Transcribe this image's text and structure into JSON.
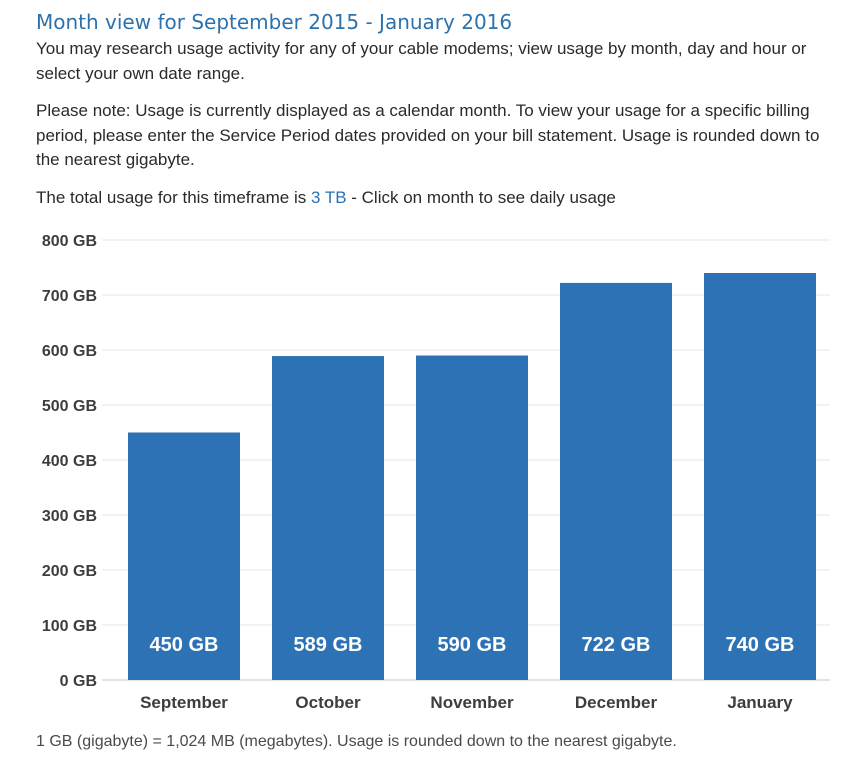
{
  "header": {
    "title": "Month view for September 2015 - January 2016"
  },
  "intro": {
    "text": "You may research usage activity for any of your cable modems; view usage by month, day and hour or select your own date range."
  },
  "note": {
    "text": "Please note: Usage is currently displayed as a calendar month. To view your usage for a specific billing period, please enter the Service Period dates provided on your bill statement. Usage is rounded down to the nearest gigabyte."
  },
  "total": {
    "prefix": "The total usage for this timeframe is ",
    "value": "3 TB",
    "suffix": " - Click on month to see daily usage"
  },
  "colors": {
    "bar": "#2d72b4",
    "link": "#2d72ad",
    "grid": "#e4e4e4"
  },
  "chart_data": {
    "type": "bar",
    "categories": [
      "September",
      "October",
      "November",
      "December",
      "January"
    ],
    "values": [
      450,
      589,
      590,
      722,
      740
    ],
    "data_labels": [
      "450 GB",
      "589 GB",
      "590 GB",
      "722 GB",
      "740 GB"
    ],
    "y_ticks": [
      "0 GB",
      "100 GB",
      "200 GB",
      "300 GB",
      "400 GB",
      "500 GB",
      "600 GB",
      "700 GB",
      "800 GB"
    ],
    "ylim": [
      0,
      800
    ],
    "unit": "GB",
    "grid": true
  },
  "footer": {
    "text": "1 GB (gigabyte) = 1,024 MB (megabytes). Usage is rounded down to the nearest gigabyte."
  }
}
